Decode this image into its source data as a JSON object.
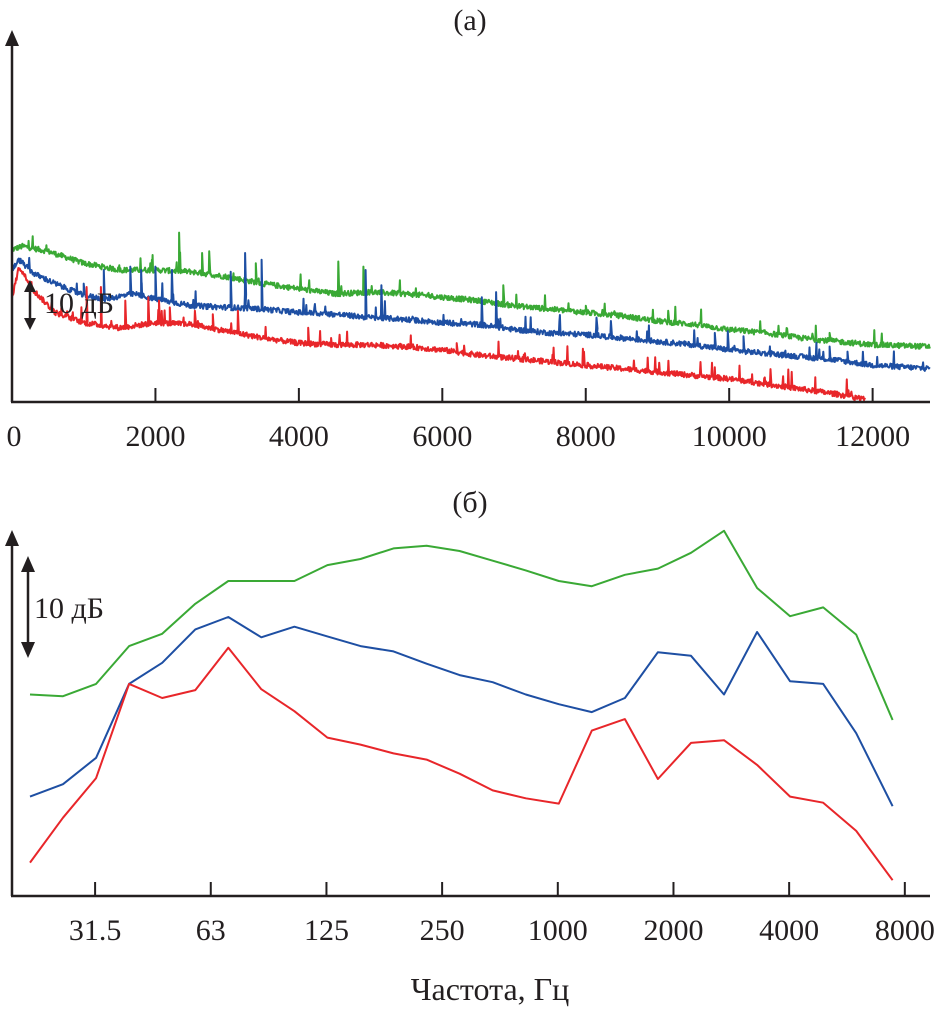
{
  "chart_data": [
    {
      "type": "line",
      "panel_label": "(а)",
      "title": "",
      "xlabel": "",
      "ylabel": "",
      "scale_bar_label": "10 дБ",
      "scale_bar_db": 10,
      "xlim": [
        0,
        12800
      ],
      "ylim": [
        -5,
        42
      ],
      "x_ticks": [
        0,
        2000,
        4000,
        6000,
        8000,
        10000,
        12000
      ],
      "x_tick_labels": [
        "0",
        "2000",
        "4000",
        "6000",
        "8000",
        "10000",
        "12000"
      ],
      "grid": false,
      "legend": "none",
      "note": "Narrow-band spectra, relative level in dB (baseline-referenced, estimated)",
      "series": [
        {
          "name": "green",
          "color": "#3aa935",
          "baseline": [
            [
              0,
              36
            ],
            [
              150,
              37
            ],
            [
              500,
              35.5
            ],
            [
              1000,
              32
            ],
            [
              1500,
              30
            ],
            [
              2000,
              30
            ],
            [
              2500,
              29.5
            ],
            [
              3000,
              28
            ],
            [
              3500,
              26
            ],
            [
              4000,
              24.5
            ],
            [
              4500,
              23
            ],
            [
              5000,
              23.5
            ],
            [
              5500,
              23
            ],
            [
              6000,
              22
            ],
            [
              6500,
              21
            ],
            [
              7000,
              19.5
            ],
            [
              7500,
              18.5
            ],
            [
              8000,
              17.5
            ],
            [
              8500,
              16.5
            ],
            [
              9000,
              15
            ],
            [
              9500,
              14
            ],
            [
              10000,
              12.5
            ],
            [
              10500,
              11.5
            ],
            [
              11000,
              10
            ],
            [
              11500,
              9
            ],
            [
              12000,
              8
            ],
            [
              12800,
              7.5
            ]
          ],
          "peaks": [
            [
              1950,
              33
            ],
            [
              2330,
              41
            ],
            [
              2650,
              35
            ],
            [
              2750,
              35.5
            ],
            [
              3400,
              32
            ],
            [
              4550,
              32.5
            ],
            [
              4900,
              31
            ],
            [
              6850,
              25.5
            ],
            [
              8000,
              19.5
            ],
            [
              9150,
              18
            ],
            [
              11400,
              11.5
            ]
          ]
        },
        {
          "name": "blue",
          "color": "#1e4fa3",
          "baseline": [
            [
              0,
              30
            ],
            [
              100,
              33
            ],
            [
              300,
              29
            ],
            [
              600,
              26
            ],
            [
              1000,
              22.5
            ],
            [
              1300,
              21.5
            ],
            [
              1700,
              23
            ],
            [
              2000,
              21.5
            ],
            [
              2500,
              19.5
            ],
            [
              3000,
              19
            ],
            [
              3500,
              18.5
            ],
            [
              4000,
              17.5
            ],
            [
              4500,
              17
            ],
            [
              5000,
              16
            ],
            [
              5500,
              15.5
            ],
            [
              6000,
              14.5
            ],
            [
              6500,
              14
            ],
            [
              7000,
              12.5
            ],
            [
              7500,
              11.5
            ],
            [
              8000,
              11
            ],
            [
              8500,
              10
            ],
            [
              9000,
              9
            ],
            [
              9500,
              8
            ],
            [
              10000,
              6.5
            ],
            [
              10500,
              5.5
            ],
            [
              11000,
              4.5
            ],
            [
              11500,
              3.5
            ],
            [
              12000,
              2
            ],
            [
              12800,
              1
            ]
          ],
          "peaks": [
            [
              1000,
              26
            ],
            [
              1280,
              30
            ],
            [
              1650,
              31
            ],
            [
              1800,
              30
            ],
            [
              2000,
              31
            ],
            [
              2230,
              30
            ],
            [
              3250,
              35
            ],
            [
              3480,
              33
            ],
            [
              3050,
              29.5
            ],
            [
              4930,
              30
            ],
            [
              5150,
              25.5
            ],
            [
              6550,
              22
            ],
            [
              6750,
              23.5
            ],
            [
              8150,
              16
            ],
            [
              8350,
              15
            ],
            [
              9800,
              11.5
            ],
            [
              9980,
              12
            ],
            [
              10200,
              10.5
            ],
            [
              11400,
              7.5
            ],
            [
              11650,
              6
            ]
          ]
        },
        {
          "name": "red",
          "color": "#e8262a",
          "baseline": [
            [
              0,
              22
            ],
            [
              100,
              31
            ],
            [
              300,
              24
            ],
            [
              600,
              17.5
            ],
            [
              1000,
              14.5
            ],
            [
              1500,
              13
            ],
            [
              2000,
              14.5
            ],
            [
              2500,
              14
            ],
            [
              3000,
              12
            ],
            [
              3500,
              10
            ],
            [
              4000,
              8.5
            ],
            [
              4500,
              8
            ],
            [
              5000,
              8
            ],
            [
              5500,
              7.5
            ],
            [
              6000,
              6.5
            ],
            [
              6500,
              5
            ],
            [
              7000,
              4
            ],
            [
              7500,
              3
            ],
            [
              8000,
              2
            ],
            [
              8500,
              1
            ],
            [
              9000,
              0
            ],
            [
              9500,
              -1
            ],
            [
              10000,
              -2
            ],
            [
              10500,
              -3.5
            ],
            [
              11000,
              -5
            ],
            [
              11500,
              -6.5
            ],
            [
              11900,
              -8
            ]
          ],
          "peaks": [
            [
              1040,
              25
            ],
            [
              1240,
              25
            ],
            [
              1580,
              21
            ],
            [
              1900,
              22
            ],
            [
              2050,
              21
            ],
            [
              2200,
              19
            ],
            [
              2550,
              18
            ],
            [
              2800,
              17
            ],
            [
              3150,
              18
            ],
            [
              4130,
              13
            ],
            [
              4450,
              10
            ],
            [
              6200,
              8.5
            ]
          ]
        }
      ]
    },
    {
      "type": "line",
      "panel_label": "(б)",
      "title": "",
      "xlabel": "Частота, Гц",
      "ylabel": "",
      "scale_bar_label": "10 дБ",
      "scale_bar_db": 10,
      "x_scale": "third-octave band index",
      "x_tick_labels": [
        "31.5",
        "63",
        "125",
        "250",
        "1000",
        "2000",
        "4000",
        "8000"
      ],
      "x_tick_positions_band_index": [
        2,
        5.5,
        9,
        12.5,
        16,
        19.5,
        23,
        26.5
      ],
      "ylim": [
        0,
        42
      ],
      "grid": false,
      "legend": "none",
      "note": "1/3-octave band levels, relative dB (baseline-referenced, estimated)",
      "x": [
        0,
        1,
        2,
        3,
        4,
        5,
        6,
        7,
        8,
        9,
        10,
        11,
        12,
        13,
        14,
        15,
        16,
        17,
        18,
        19,
        20,
        21,
        22,
        23,
        24,
        25,
        26.1
      ],
      "series": [
        {
          "name": "green",
          "color": "#3aa935",
          "values": [
            22.9,
            22.7,
            24.1,
            28.4,
            29.8,
            33.2,
            35.8,
            35.8,
            35.8,
            37.6,
            38.3,
            39.5,
            39.8,
            39.2,
            38.1,
            37.0,
            35.8,
            35.2,
            36.5,
            37.2,
            39.0,
            41.5,
            35.0,
            31.8,
            32.8,
            29.7,
            20.0
          ]
        },
        {
          "name": "blue",
          "color": "#1e4fa3",
          "values": [
            11.3,
            12.7,
            15.7,
            24.1,
            26.5,
            30.3,
            31.7,
            29.4,
            30.6,
            29.5,
            28.4,
            27.8,
            26.4,
            25.1,
            24.3,
            22.9,
            21.8,
            20.9,
            22.5,
            27.7,
            27.3,
            22.9,
            30.0,
            24.4,
            24.1,
            18.5,
            10.2
          ]
        },
        {
          "name": "red",
          "color": "#e8262a",
          "values": [
            3.8,
            8.9,
            13.4,
            24.1,
            22.5,
            23.4,
            28.2,
            23.5,
            21.0,
            18.0,
            17.2,
            16.2,
            15.5,
            13.9,
            12.0,
            11.1,
            10.5,
            18.8,
            20.1,
            13.3,
            17.4,
            17.7,
            14.9,
            11.3,
            10.6,
            7.4,
            1.8
          ]
        }
      ]
    }
  ]
}
